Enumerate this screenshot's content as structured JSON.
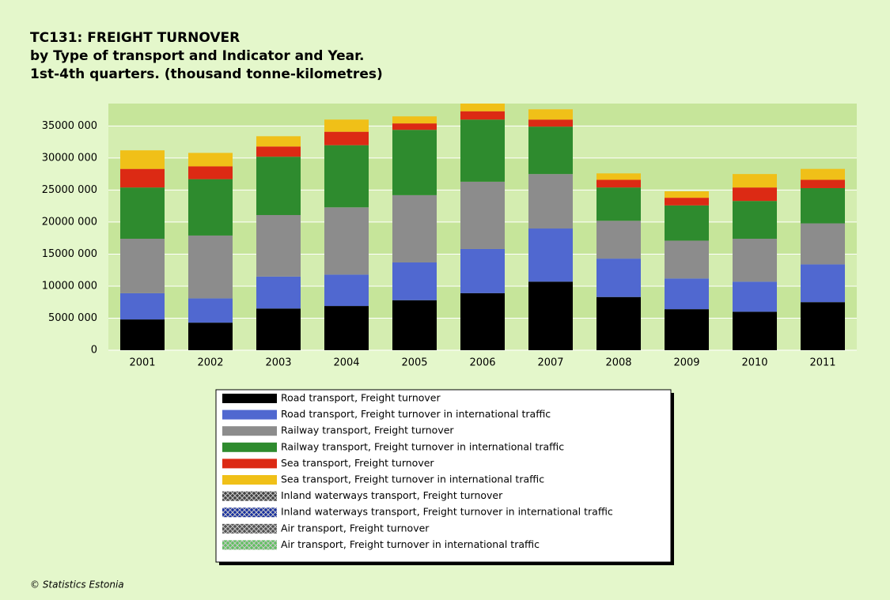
{
  "chart_data": {
    "type": "stacked-bar",
    "title": "TC131: FREIGHT TURNOVER",
    "subtitle": [
      "by Type of transport and Indicator and Year.",
      "1st-4th quarters. (thousand tonne-kilometres)"
    ],
    "categories": [
      "2001",
      "2002",
      "2003",
      "2004",
      "2005",
      "2006",
      "2007",
      "2008",
      "2009",
      "2010",
      "2011"
    ],
    "series": [
      {
        "name": "Road transport, Freight turnover",
        "color": "#000000",
        "values": [
          4800000,
          4300000,
          6500000,
          6900000,
          7800000,
          8900000,
          10700000,
          8300000,
          6400000,
          6000000,
          7500000
        ]
      },
      {
        "name": "Road transport, Freight turnover in international traffic",
        "color": "#5068d0",
        "values": [
          4100000,
          3800000,
          5000000,
          4900000,
          5900000,
          6900000,
          8300000,
          6000000,
          4800000,
          4700000,
          5900000
        ]
      },
      {
        "name": "Railway transport, Freight turnover",
        "color": "#8c8c8c",
        "values": [
          8500000,
          9800000,
          9600000,
          10500000,
          10500000,
          10500000,
          8500000,
          5900000,
          5900000,
          6700000,
          6400000
        ]
      },
      {
        "name": "Railway transport, Freight turnover in international traffic",
        "color": "#2e8b2e",
        "values": [
          8000000,
          8800000,
          9100000,
          9700000,
          10200000,
          9700000,
          7400000,
          5200000,
          5500000,
          5900000,
          5500000
        ]
      },
      {
        "name": "Sea transport, Freight turnover",
        "color": "#dc2a14",
        "values": [
          2900000,
          2000000,
          1600000,
          2100000,
          1000000,
          1300000,
          1100000,
          1200000,
          1200000,
          2100000,
          1300000
        ]
      },
      {
        "name": "Sea transport, Freight turnover in international traffic",
        "color": "#f0c018",
        "values": [
          2900000,
          2100000,
          1600000,
          1900000,
          1100000,
          1200000,
          1600000,
          1000000,
          1000000,
          2100000,
          1700000
        ]
      },
      {
        "name": "Inland waterways transport, Freight turnover",
        "color": "#404040",
        "pattern": "cross",
        "values": [
          0,
          0,
          0,
          0,
          0,
          0,
          0,
          0,
          0,
          0,
          0
        ]
      },
      {
        "name": "Inland waterways transport, Freight turnover in international traffic",
        "color": "#1830a0",
        "pattern": "cross",
        "values": [
          0,
          0,
          0,
          0,
          0,
          0,
          0,
          0,
          0,
          0,
          0
        ]
      },
      {
        "name": "Air transport, Freight turnover",
        "color": "#505050",
        "pattern": "cross",
        "values": [
          0,
          0,
          0,
          0,
          0,
          0,
          0,
          0,
          0,
          0,
          0
        ]
      },
      {
        "name": "Air transport, Freight turnover in international traffic",
        "color": "#60c060",
        "pattern": "cross",
        "values": [
          0,
          0,
          0,
          0,
          0,
          0,
          0,
          0,
          0,
          0,
          0
        ]
      }
    ],
    "ylim": [
      0,
      38500000
    ],
    "yticks": [
      0,
      {
        "value": 5000000,
        "label": "5000 000"
      },
      {
        "value": 10000000,
        "label": "10000 000"
      },
      {
        "value": 15000000,
        "label": "15000 000"
      },
      {
        "value": 20000000,
        "label": "20000 000"
      },
      {
        "value": 25000000,
        "label": "25000 000"
      },
      {
        "value": 30000000,
        "label": "30000 000"
      },
      {
        "value": 35000000,
        "label": "35000 000"
      }
    ],
    "grid": true,
    "source": "© Statistics Estonia"
  }
}
